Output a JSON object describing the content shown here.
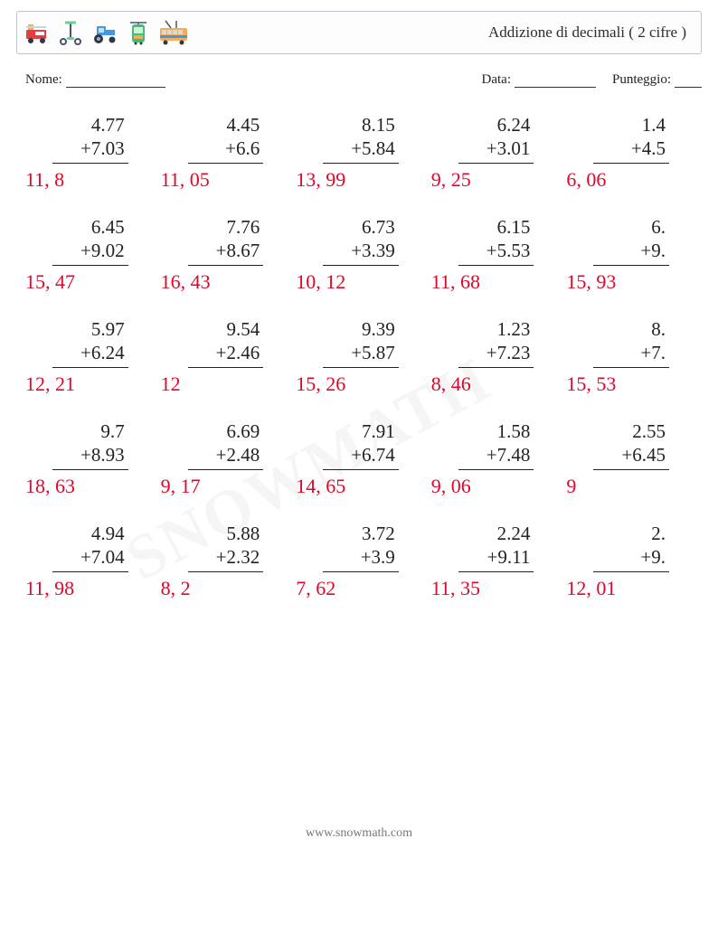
{
  "header": {
    "title": "Addizione di decimali ( 2 cifre )"
  },
  "info": {
    "name_label": "Nome:",
    "date_label": "Data:",
    "score_label": "Punteggio:"
  },
  "footer": {
    "site": "www.snowmath.com"
  },
  "problems": [
    [
      {
        "a": "4.77",
        "b": "7.03",
        "ans": "11, 8"
      },
      {
        "a": "4.45",
        "b": "6.6",
        "ans": "11, 05"
      },
      {
        "a": "8.15",
        "b": "5.84",
        "ans": "13, 99"
      },
      {
        "a": "6.24",
        "b": "3.01",
        "ans": "9, 25"
      },
      {
        "a": "1.4",
        "b": "4.5",
        "ans": "6, 06"
      }
    ],
    [
      {
        "a": "6.45",
        "b": "9.02",
        "ans": "15, 47"
      },
      {
        "a": "7.76",
        "b": "8.67",
        "ans": "16, 43"
      },
      {
        "a": "6.73",
        "b": "3.39",
        "ans": "10, 12"
      },
      {
        "a": "6.15",
        "b": "5.53",
        "ans": "11, 68"
      },
      {
        "a": "6.",
        "b": "9.",
        "ans": "15, 93"
      }
    ],
    [
      {
        "a": "5.97",
        "b": "6.24",
        "ans": "12, 21"
      },
      {
        "a": "9.54",
        "b": "2.46",
        "ans": "12"
      },
      {
        "a": "9.39",
        "b": "5.87",
        "ans": "15, 26"
      },
      {
        "a": "1.23",
        "b": "7.23",
        "ans": "8, 46"
      },
      {
        "a": "8.",
        "b": "7.",
        "ans": "15, 53"
      }
    ],
    [
      {
        "a": "9.7",
        "b": "8.93",
        "ans": "18, 63"
      },
      {
        "a": "6.69",
        "b": "2.48",
        "ans": "9, 17"
      },
      {
        "a": "7.91",
        "b": "6.74",
        "ans": "14, 65"
      },
      {
        "a": "1.58",
        "b": "7.48",
        "ans": "9, 06"
      },
      {
        "a": "2.55",
        "b": "6.45",
        "ans": "9"
      }
    ],
    [
      {
        "a": "4.94",
        "b": "7.04",
        "ans": "11, 98"
      },
      {
        "a": "5.88",
        "b": "2.32",
        "ans": "8, 2"
      },
      {
        "a": "3.72",
        "b": "3.9",
        "ans": "7, 62"
      },
      {
        "a": "2.24",
        "b": "9.11",
        "ans": "11, 35"
      },
      {
        "a": "2.",
        "b": "9.",
        "ans": "12, 01"
      }
    ]
  ],
  "style": {
    "text_color": "#222222",
    "answer_color": "#e1062a",
    "border_color": "#bfc5cc",
    "background_color": "#ffffff",
    "font_family": "Georgia",
    "problem_fontsize": 21,
    "answer_fontsize": 22,
    "title_fontsize": 17,
    "info_fontsize": 15,
    "operator": "+",
    "icons": [
      {
        "name": "fire-truck-icon",
        "primary": "#e53e3e",
        "accent": "#f6ad55"
      },
      {
        "name": "scooter-icon",
        "primary": "#68d391",
        "accent": "#4a5568"
      },
      {
        "name": "tractor-icon",
        "primary": "#4299e1",
        "accent": "#2d3748"
      },
      {
        "name": "tram-icon",
        "primary": "#48bb78",
        "accent": "#f6ad55"
      },
      {
        "name": "trolleybus-icon",
        "primary": "#f6ad55",
        "accent": "#4299e1"
      }
    ]
  }
}
